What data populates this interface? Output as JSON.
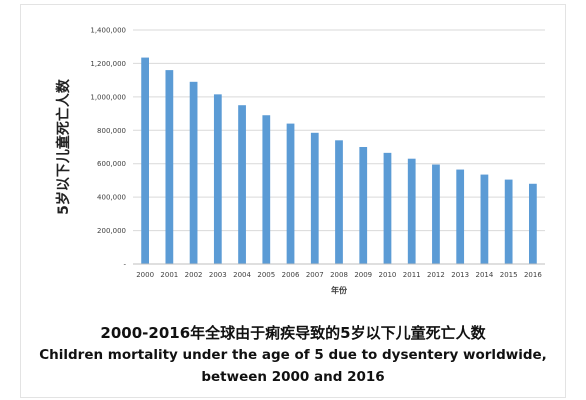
{
  "chart_data": {
    "type": "bar",
    "categories": [
      "2000",
      "2001",
      "2002",
      "2003",
      "2004",
      "2005",
      "2006",
      "2007",
      "2008",
      "2009",
      "2010",
      "2011",
      "2012",
      "2013",
      "2014",
      "2015",
      "2016"
    ],
    "values": [
      1235000,
      1160000,
      1090000,
      1015000,
      950000,
      890000,
      840000,
      785000,
      740000,
      700000,
      665000,
      630000,
      595000,
      565000,
      535000,
      505000,
      480000
    ],
    "ylim": [
      0,
      1400000
    ],
    "yticks": [
      0,
      200000,
      400000,
      600000,
      800000,
      1000000,
      1200000,
      1400000
    ],
    "ytick_labels": [
      "-",
      "200,000",
      "400,000",
      "600,000",
      "800,000",
      "1,000,000",
      "1,200,000",
      "1,400,000"
    ],
    "xlabel": "年份",
    "ylabel": "5岁以下儿童死亡人数",
    "bar_color": "#5b9bd5",
    "grid": true,
    "gridline_color": "#d9d9d9",
    "legend": "none"
  },
  "captions": {
    "zh": "2000-2016年全球由于痢疾导致的5岁以下儿童死亡人数",
    "en_line1": "Children mortality under the age of 5 due to dysentery worldwide,",
    "en_line2": "between 2000 and 2016"
  }
}
